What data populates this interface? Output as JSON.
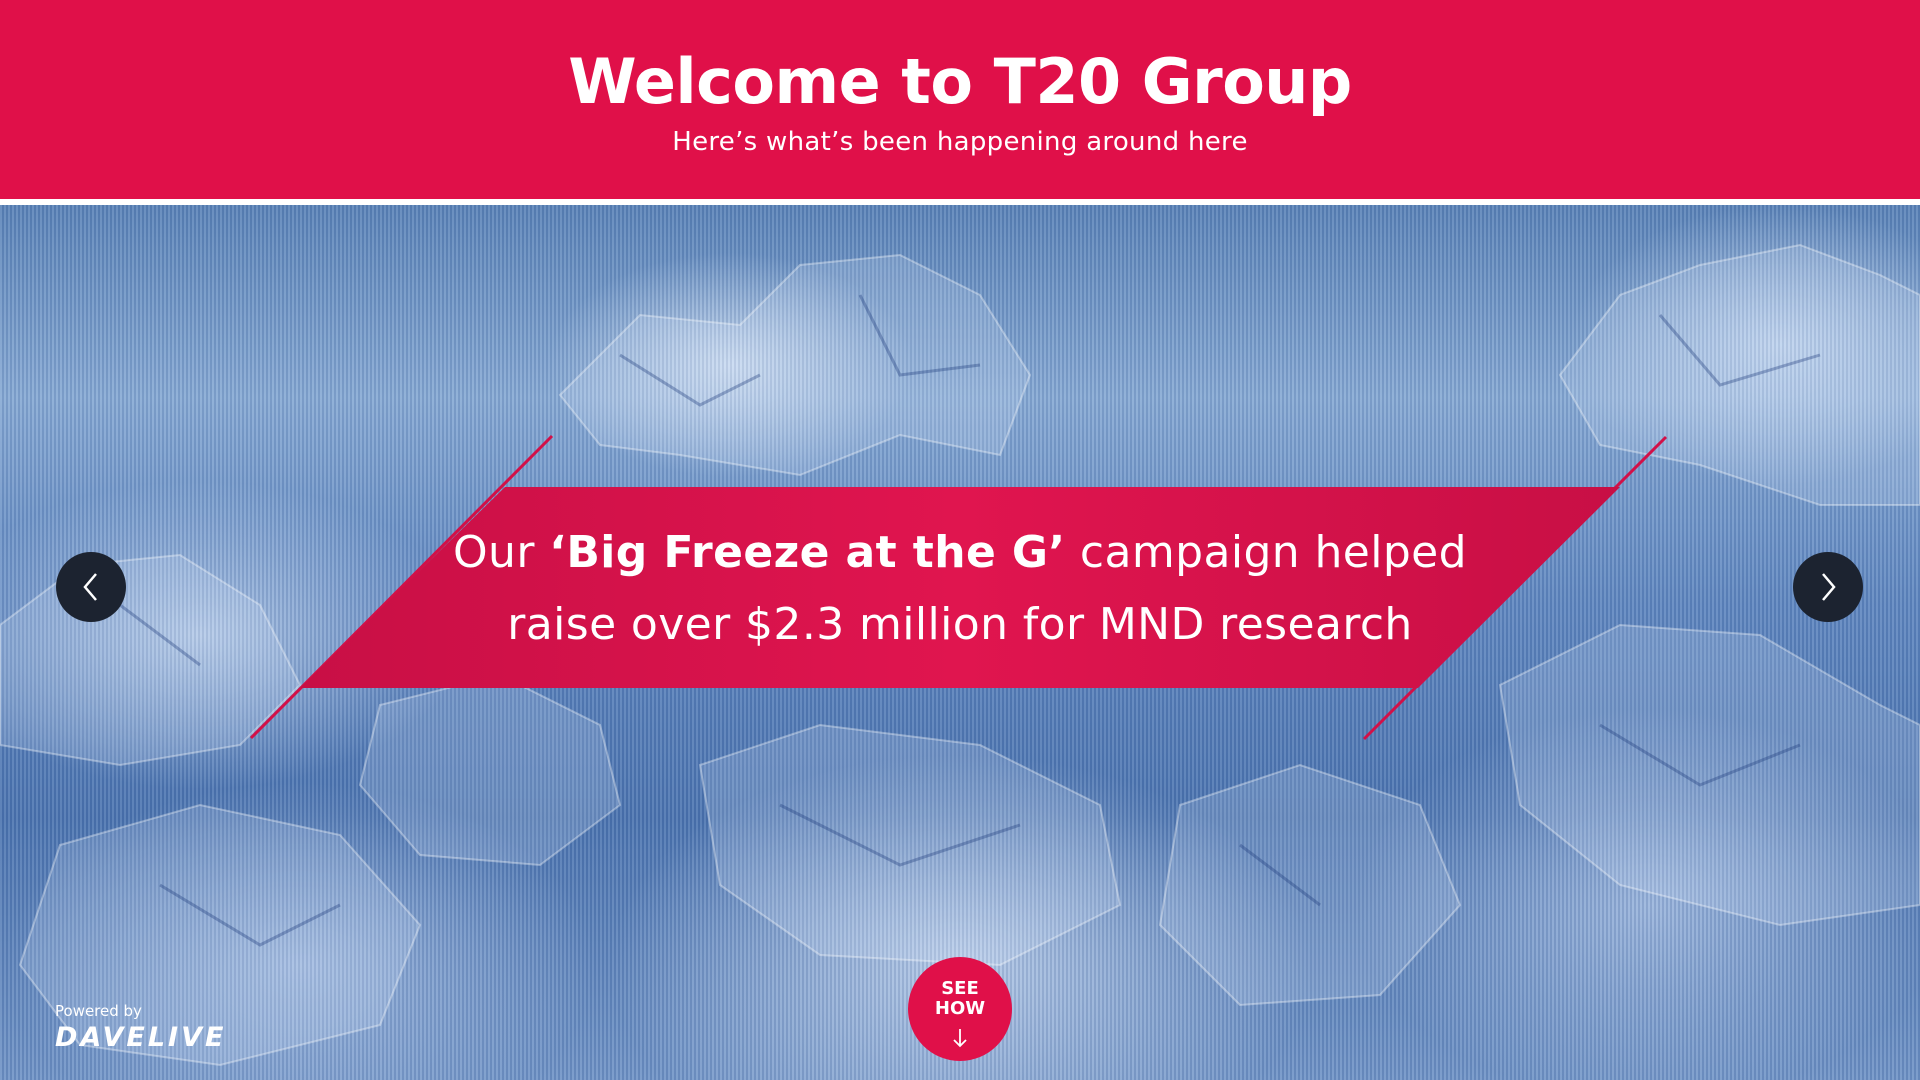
{
  "header": {
    "title": "Welcome to T20 Group",
    "subtitle": "Here’s what’s been happening around here"
  },
  "slide": {
    "text_before": "Our ",
    "text_bold": "‘Big Freeze at the G’",
    "text_after_line1": " campaign helped",
    "text_line2": "raise over $2.3 million for MND research"
  },
  "nav": {
    "prev_icon": "chevron-left-icon",
    "next_icon": "chevron-right-icon"
  },
  "cta": {
    "label_line1": "SEE",
    "label_line2": "HOW",
    "icon": "arrow-down-icon"
  },
  "footer": {
    "powered_label": "Powered by",
    "brand": "DAVELIVE"
  },
  "colors": {
    "accent": "#e01049",
    "nav_bg": "#1c2330",
    "ice_blue": "#5f87c0"
  }
}
